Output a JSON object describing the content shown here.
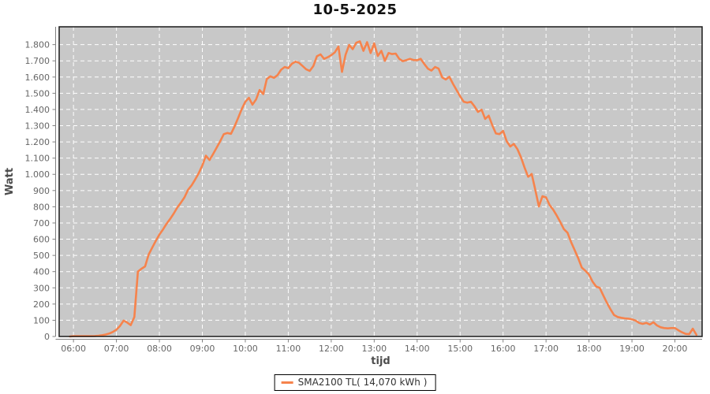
{
  "title": "10-5-2025",
  "legend": {
    "label": "SMA2100 TL( 14,070 kWh )"
  },
  "colors": {
    "line": "#f6834c",
    "plot_bg": "#c8c8c8",
    "plot_border": "#1a1a1a",
    "grid": "#ffffff",
    "axis": "#808080",
    "tick_text": "#666666",
    "axis_title_text": "#4d4d4d",
    "title_text": "#111111"
  },
  "chart_data": {
    "type": "line",
    "title": "10-5-2025",
    "xlabel": "tijd",
    "ylabel": "Watt",
    "ylim": [
      0,
      1910
    ],
    "xlim_hours": [
      5.667,
      20.633
    ],
    "grid": true,
    "legend_position": "bottom-center",
    "y_ticks": [
      {
        "value": 0,
        "label": "0"
      },
      {
        "value": 100,
        "label": "100"
      },
      {
        "value": 200,
        "label": "200"
      },
      {
        "value": 300,
        "label": "300"
      },
      {
        "value": 400,
        "label": "400"
      },
      {
        "value": 500,
        "label": "500"
      },
      {
        "value": 600,
        "label": "600"
      },
      {
        "value": 700,
        "label": "700"
      },
      {
        "value": 800,
        "label": "800"
      },
      {
        "value": 900,
        "label": "900"
      },
      {
        "value": 1000,
        "label": "1.000"
      },
      {
        "value": 1100,
        "label": "1.100"
      },
      {
        "value": 1200,
        "label": "1.200"
      },
      {
        "value": 1300,
        "label": "1.300"
      },
      {
        "value": 1400,
        "label": "1.400"
      },
      {
        "value": 1500,
        "label": "1.500"
      },
      {
        "value": 1600,
        "label": "1.600"
      },
      {
        "value": 1700,
        "label": "1.700"
      },
      {
        "value": 1800,
        "label": "1.800"
      }
    ],
    "x_ticks": [
      {
        "hour": 6,
        "label": "06:00"
      },
      {
        "hour": 7,
        "label": "07:00"
      },
      {
        "hour": 8,
        "label": "08:00"
      },
      {
        "hour": 9,
        "label": "09:00"
      },
      {
        "hour": 10,
        "label": "10:00"
      },
      {
        "hour": 11,
        "label": "11:00"
      },
      {
        "hour": 12,
        "label": "12:00"
      },
      {
        "hour": 13,
        "label": "13:00"
      },
      {
        "hour": 14,
        "label": "14:00"
      },
      {
        "hour": 15,
        "label": "15:00"
      },
      {
        "hour": 16,
        "label": "16:00"
      },
      {
        "hour": 17,
        "label": "17:00"
      },
      {
        "hour": 18,
        "label": "18:00"
      },
      {
        "hour": 19,
        "label": "19:00"
      },
      {
        "hour": 20,
        "label": "20:00"
      }
    ],
    "series": [
      {
        "name": "SMA2100 TL( 14,070 kWh )",
        "points": [
          [
            "05:55",
            0
          ],
          [
            "06:00",
            2
          ],
          [
            "06:05",
            2
          ],
          [
            "06:10",
            2
          ],
          [
            "06:15",
            2
          ],
          [
            "06:20",
            2
          ],
          [
            "06:25",
            2
          ],
          [
            "06:30",
            3
          ],
          [
            "06:35",
            5
          ],
          [
            "06:40",
            8
          ],
          [
            "06:45",
            12
          ],
          [
            "06:50",
            18
          ],
          [
            "06:55",
            28
          ],
          [
            "07:00",
            42
          ],
          [
            "07:05",
            65
          ],
          [
            "07:10",
            98
          ],
          [
            "07:15",
            86
          ],
          [
            "07:20",
            70
          ],
          [
            "07:25",
            120
          ],
          [
            "07:30",
            400
          ],
          [
            "07:35",
            418
          ],
          [
            "07:40",
            432
          ],
          [
            "07:45",
            505
          ],
          [
            "07:50",
            548
          ],
          [
            "07:55",
            590
          ],
          [
            "08:00",
            628
          ],
          [
            "08:05",
            660
          ],
          [
            "08:10",
            695
          ],
          [
            "08:15",
            725
          ],
          [
            "08:20",
            758
          ],
          [
            "08:25",
            795
          ],
          [
            "08:30",
            825
          ],
          [
            "08:35",
            858
          ],
          [
            "08:40",
            905
          ],
          [
            "08:45",
            932
          ],
          [
            "08:50",
            968
          ],
          [
            "08:55",
            1008
          ],
          [
            "09:00",
            1055
          ],
          [
            "09:05",
            1115
          ],
          [
            "09:10",
            1088
          ],
          [
            "09:15",
            1125
          ],
          [
            "09:20",
            1165
          ],
          [
            "09:25",
            1205
          ],
          [
            "09:30",
            1248
          ],
          [
            "09:35",
            1255
          ],
          [
            "09:40",
            1250
          ],
          [
            "09:45",
            1295
          ],
          [
            "09:50",
            1348
          ],
          [
            "09:55",
            1402
          ],
          [
            "10:00",
            1448
          ],
          [
            "10:05",
            1472
          ],
          [
            "10:10",
            1430
          ],
          [
            "10:15",
            1462
          ],
          [
            "10:20",
            1520
          ],
          [
            "10:25",
            1495
          ],
          [
            "10:30",
            1588
          ],
          [
            "10:35",
            1605
          ],
          [
            "10:40",
            1595
          ],
          [
            "10:45",
            1612
          ],
          [
            "10:50",
            1645
          ],
          [
            "10:55",
            1662
          ],
          [
            "11:00",
            1655
          ],
          [
            "11:05",
            1682
          ],
          [
            "11:10",
            1695
          ],
          [
            "11:15",
            1688
          ],
          [
            "11:20",
            1668
          ],
          [
            "11:25",
            1648
          ],
          [
            "11:30",
            1638
          ],
          [
            "11:35",
            1668
          ],
          [
            "11:40",
            1728
          ],
          [
            "11:45",
            1740
          ],
          [
            "11:50",
            1712
          ],
          [
            "11:55",
            1722
          ],
          [
            "12:00",
            1735
          ],
          [
            "12:05",
            1752
          ],
          [
            "12:10",
            1788
          ],
          [
            "12:15",
            1632
          ],
          [
            "12:20",
            1737
          ],
          [
            "12:25",
            1798
          ],
          [
            "12:30",
            1772
          ],
          [
            "12:35",
            1812
          ],
          [
            "12:40",
            1820
          ],
          [
            "12:45",
            1762
          ],
          [
            "12:50",
            1815
          ],
          [
            "12:55",
            1748
          ],
          [
            "13:00",
            1808
          ],
          [
            "13:05",
            1730
          ],
          [
            "13:10",
            1762
          ],
          [
            "13:15",
            1700
          ],
          [
            "13:20",
            1748
          ],
          [
            "13:25",
            1742
          ],
          [
            "13:30",
            1745
          ],
          [
            "13:35",
            1712
          ],
          [
            "13:40",
            1698
          ],
          [
            "13:45",
            1705
          ],
          [
            "13:50",
            1712
          ],
          [
            "13:55",
            1705
          ],
          [
            "14:00",
            1704
          ],
          [
            "14:05",
            1712
          ],
          [
            "14:10",
            1680
          ],
          [
            "14:15",
            1652
          ],
          [
            "14:20",
            1640
          ],
          [
            "14:25",
            1662
          ],
          [
            "14:30",
            1652
          ],
          [
            "14:35",
            1598
          ],
          [
            "14:40",
            1585
          ],
          [
            "14:45",
            1602
          ],
          [
            "14:50",
            1558
          ],
          [
            "14:55",
            1520
          ],
          [
            "15:00",
            1482
          ],
          [
            "15:05",
            1448
          ],
          [
            "15:10",
            1442
          ],
          [
            "15:15",
            1448
          ],
          [
            "15:20",
            1420
          ],
          [
            "15:25",
            1385
          ],
          [
            "15:30",
            1398
          ],
          [
            "15:35",
            1342
          ],
          [
            "15:40",
            1362
          ],
          [
            "15:45",
            1302
          ],
          [
            "15:50",
            1252
          ],
          [
            "15:55",
            1248
          ],
          [
            "16:00",
            1268
          ],
          [
            "16:05",
            1205
          ],
          [
            "16:10",
            1172
          ],
          [
            "16:15",
            1188
          ],
          [
            "16:20",
            1155
          ],
          [
            "16:25",
            1105
          ],
          [
            "16:30",
            1042
          ],
          [
            "16:35",
            985
          ],
          [
            "16:40",
            1002
          ],
          [
            "16:45",
            905
          ],
          [
            "16:50",
            802
          ],
          [
            "16:55",
            865
          ],
          [
            "17:00",
            858
          ],
          [
            "17:05",
            810
          ],
          [
            "17:10",
            782
          ],
          [
            "17:15",
            745
          ],
          [
            "17:20",
            705
          ],
          [
            "17:25",
            662
          ],
          [
            "17:30",
            640
          ],
          [
            "17:35",
            582
          ],
          [
            "17:40",
            532
          ],
          [
            "17:45",
            482
          ],
          [
            "17:50",
            425
          ],
          [
            "17:55",
            405
          ],
          [
            "18:00",
            382
          ],
          [
            "18:05",
            338
          ],
          [
            "18:10",
            308
          ],
          [
            "18:15",
            300
          ],
          [
            "18:20",
            252
          ],
          [
            "18:25",
            208
          ],
          [
            "18:30",
            168
          ],
          [
            "18:35",
            132
          ],
          [
            "18:40",
            120
          ],
          [
            "18:45",
            115
          ],
          [
            "18:50",
            112
          ],
          [
            "18:55",
            110
          ],
          [
            "19:00",
            106
          ],
          [
            "19:05",
            98
          ],
          [
            "19:10",
            84
          ],
          [
            "19:15",
            78
          ],
          [
            "19:20",
            84
          ],
          [
            "19:25",
            74
          ],
          [
            "19:30",
            88
          ],
          [
            "19:35",
            68
          ],
          [
            "19:40",
            57
          ],
          [
            "19:45",
            52
          ],
          [
            "19:50",
            50
          ],
          [
            "19:55",
            52
          ],
          [
            "20:00",
            52
          ],
          [
            "20:05",
            38
          ],
          [
            "20:10",
            26
          ],
          [
            "20:15",
            16
          ],
          [
            "20:20",
            14
          ],
          [
            "20:25",
            48
          ],
          [
            "20:30",
            10
          ]
        ]
      }
    ]
  }
}
